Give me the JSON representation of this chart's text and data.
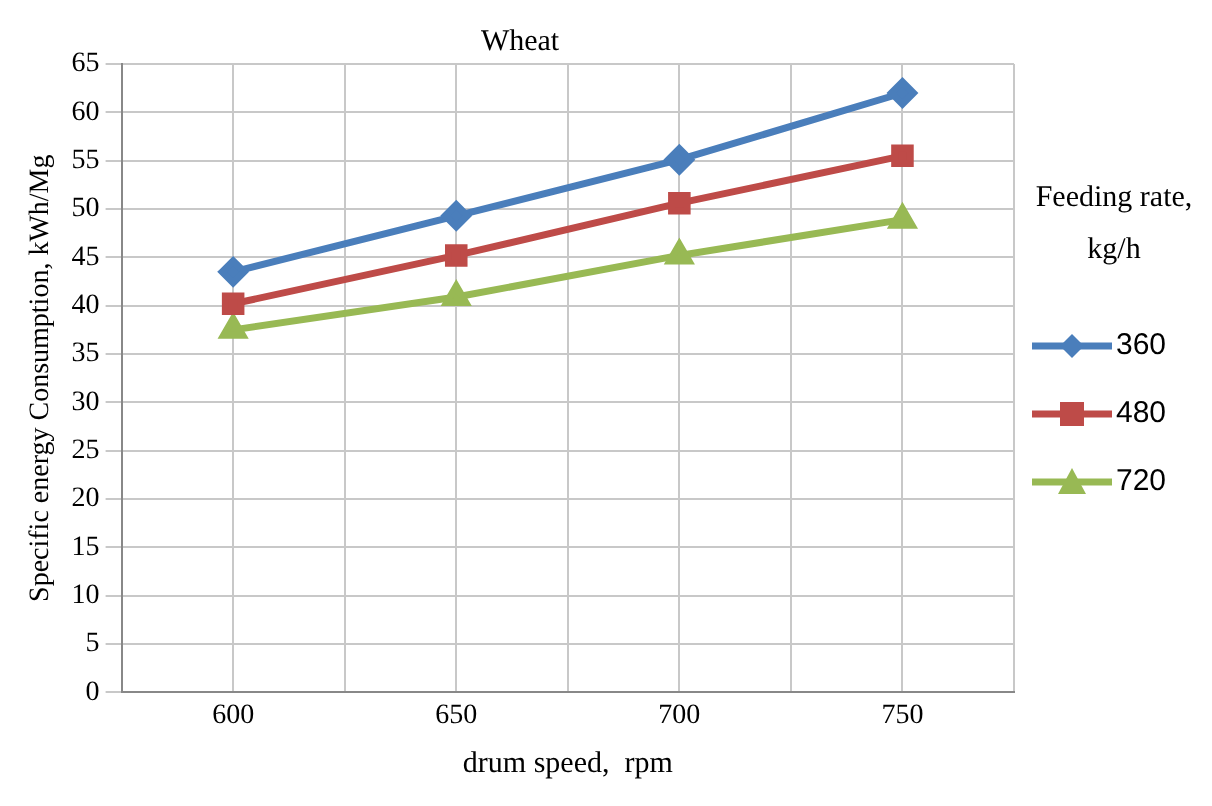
{
  "chart_data": {
    "type": "line",
    "title": "Wheat",
    "xlabel": "drum speed,  rpm",
    "ylabel": "Specific energy Consumption, kWh/Mg",
    "legend_title": "Feeding rate, kg/h",
    "legend": "right",
    "grid": true,
    "line_style": "solid",
    "x": [
      600,
      650,
      700,
      750
    ],
    "xlim": [
      575,
      775
    ],
    "xticks": [
      {
        "value": 575,
        "label": null
      },
      600,
      {
        "value": 625,
        "label": null
      },
      650,
      {
        "value": 675,
        "label": null
      },
      700,
      {
        "value": 725,
        "label": null
      },
      750,
      {
        "value": 775,
        "label": null
      }
    ],
    "ylim": [
      0,
      65
    ],
    "yticks": [
      0,
      5,
      10,
      15,
      20,
      25,
      30,
      35,
      40,
      45,
      50,
      55,
      60,
      65
    ],
    "series": [
      {
        "name": "360",
        "color": "#4a7ebb",
        "marker": "diamond",
        "values": [
          43.5,
          49.3,
          55.1,
          62.0
        ]
      },
      {
        "name": "480",
        "color": "#be4b48",
        "marker": "square",
        "values": [
          40.2,
          45.2,
          50.6,
          55.5
        ]
      },
      {
        "name": "720",
        "color": "#98b954",
        "marker": "triangle",
        "values": [
          37.5,
          40.9,
          45.2,
          48.9
        ]
      }
    ]
  }
}
